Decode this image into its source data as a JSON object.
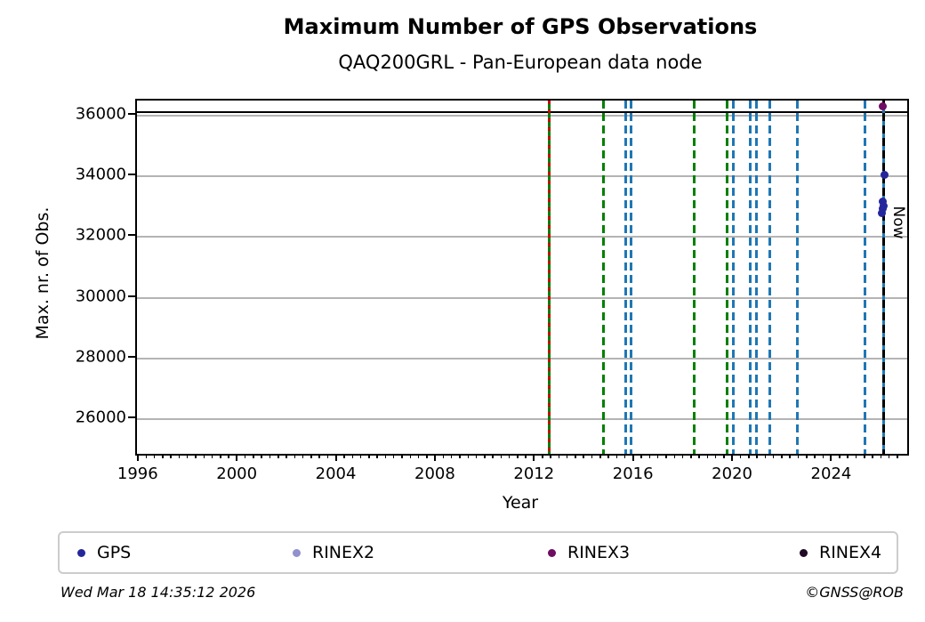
{
  "header": {
    "title": "Maximum Number of GPS Observations",
    "subtitle": "QAQ200GRL - Pan-European data node"
  },
  "chart_data": {
    "type": "scatter",
    "title": "Maximum Number of GPS Observations",
    "subtitle": "QAQ200GRL - Pan-European data node",
    "xlabel": "Year",
    "ylabel": "Max. nr. of Obs.",
    "xlim": [
      1995.9,
      2027.0
    ],
    "ylim": [
      24850,
      36500
    ],
    "xticks": [
      1996,
      2000,
      2004,
      2008,
      2012,
      2016,
      2020,
      2024
    ],
    "yticks": [
      26000,
      28000,
      30000,
      32000,
      34000,
      36000
    ],
    "x_minor_step_years": 0.3333,
    "grid": "horizontal-major",
    "gridline_color": "#b4b4b4",
    "reference_hline": {
      "value": 36120,
      "color": "#000000",
      "style": "solid"
    },
    "event_lines": [
      {
        "x": 2012.53,
        "color": "#008000",
        "overlay": "#cc0000",
        "style": "solid+red-dashed",
        "name": "receiver-antenna-change-line"
      },
      {
        "x": 2014.72,
        "color": "#008000",
        "style": "dashed",
        "name": "receiver-change-line"
      },
      {
        "x": 2015.62,
        "color": "#1f77b4",
        "style": "dashed",
        "name": "firmware-change-line"
      },
      {
        "x": 2015.85,
        "color": "#1f77b4",
        "style": "dashed",
        "name": "firmware-change-line"
      },
      {
        "x": 2018.41,
        "color": "#008000",
        "style": "dashed",
        "name": "receiver-change-line"
      },
      {
        "x": 2019.74,
        "color": "#008000",
        "style": "dashed",
        "name": "receiver-change-line"
      },
      {
        "x": 2019.99,
        "color": "#1f77b4",
        "style": "dashed",
        "name": "firmware-change-line"
      },
      {
        "x": 2020.67,
        "color": "#1f77b4",
        "style": "dashed",
        "name": "firmware-change-line"
      },
      {
        "x": 2020.92,
        "color": "#1f77b4",
        "style": "dashed",
        "name": "firmware-change-line"
      },
      {
        "x": 2021.44,
        "color": "#1f77b4",
        "style": "dashed",
        "name": "firmware-change-line"
      },
      {
        "x": 2022.55,
        "color": "#1f77b4",
        "style": "dashed",
        "name": "firmware-change-line"
      },
      {
        "x": 2025.3,
        "color": "#1f77b4",
        "style": "dashed",
        "name": "firmware-change-line"
      },
      {
        "x": 2026.05,
        "color": "#1f77b4",
        "overlay": "#000000",
        "style": "solid+black-dashed",
        "name": "now-line"
      }
    ],
    "series": [
      {
        "name": "GPS",
        "color": "#26269c",
        "points": [
          {
            "x": 2026.07,
            "y": 34060
          },
          {
            "x": 2026.03,
            "y": 33180
          },
          {
            "x": 2026.05,
            "y": 33020
          },
          {
            "x": 2026.02,
            "y": 32930
          },
          {
            "x": 2025.98,
            "y": 32790
          }
        ]
      },
      {
        "name": "RINEX2",
        "color": "#9191ce",
        "points": []
      },
      {
        "name": "RINEX3",
        "color": "#6e0d62",
        "points": [
          {
            "x": 2026.0,
            "y": 36320
          }
        ]
      },
      {
        "name": "RINEX4",
        "color": "#200b26",
        "points": []
      }
    ],
    "legend": [
      {
        "label": "GPS",
        "color": "#26269c"
      },
      {
        "label": "RINEX2",
        "color": "#9191ce"
      },
      {
        "label": "RINEX3",
        "color": "#6e0d62"
      },
      {
        "label": "RINEX4",
        "color": "#200b26"
      }
    ],
    "annotation": {
      "text": "Now",
      "x": 2026.65,
      "y": 32470,
      "rotation_deg": 90
    }
  },
  "footer": {
    "timestamp": "Wed Mar 18 14:35:12 2026",
    "credit": "©GNSS@ROB"
  }
}
